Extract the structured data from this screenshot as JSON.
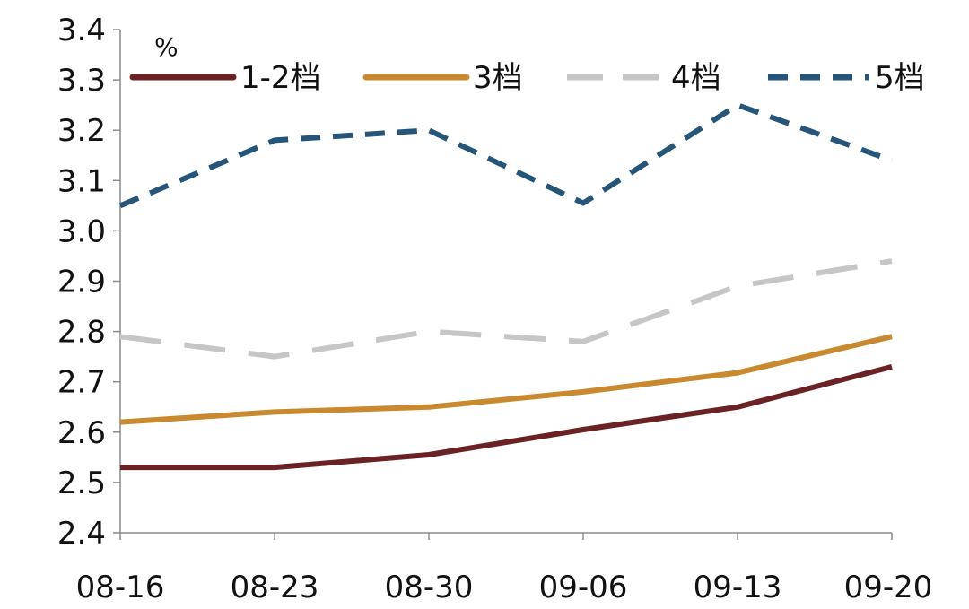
{
  "chart_data": {
    "type": "line",
    "unit": "%",
    "categories": [
      "08-16",
      "08-23",
      "08-30",
      "09-06",
      "09-13",
      "09-20"
    ],
    "ylim": [
      2.4,
      3.4
    ],
    "yticks": [
      "2.4",
      "2.5",
      "2.6",
      "2.7",
      "2.8",
      "2.9",
      "3.0",
      "3.1",
      "3.2",
      "3.3",
      "3.4"
    ],
    "grid": false,
    "legend_position": "top",
    "series": [
      {
        "name": "1-2档",
        "values": [
          2.53,
          2.53,
          2.555,
          2.605,
          2.65,
          2.73
        ],
        "color": "#6b2224",
        "style": "solid"
      },
      {
        "name": "3档",
        "values": [
          2.62,
          2.64,
          2.65,
          2.68,
          2.718,
          2.79
        ],
        "color": "#c8892f",
        "style": "solid"
      },
      {
        "name": "4档",
        "values": [
          2.79,
          2.75,
          2.8,
          2.78,
          2.89,
          2.94
        ],
        "color": "#c6c6c6",
        "style": "long-dash"
      },
      {
        "name": "5档",
        "values": [
          3.05,
          3.18,
          3.2,
          3.055,
          3.25,
          3.14
        ],
        "color": "#255578",
        "style": "dash"
      }
    ]
  }
}
